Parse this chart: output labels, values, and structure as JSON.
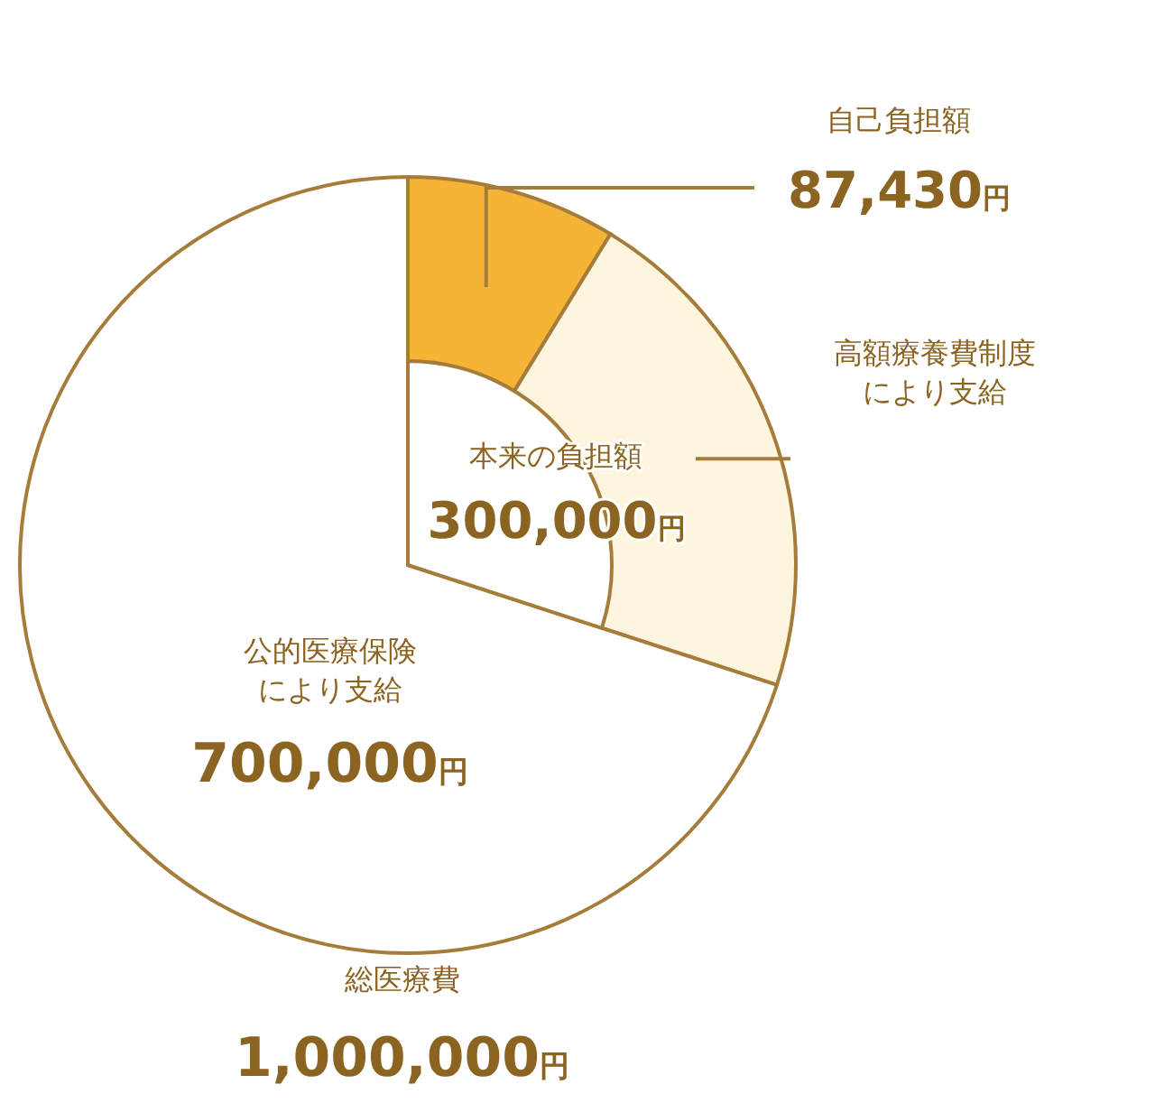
{
  "chart_data": {
    "type": "pie",
    "categories": [
      "自己負担額",
      "高額療養費制度により支給",
      "公的医療保険により支給"
    ],
    "values": [
      87430,
      212570,
      700000
    ],
    "colors": [
      "#f6b437",
      "#fdf5de",
      "#ffffff"
    ],
    "value_labels": [
      "87,430円",
      null,
      "700,000円"
    ],
    "annotations": [
      "本来の負担額",
      "300,000円",
      "総医療費",
      "1,000,000円"
    ]
  }
}
